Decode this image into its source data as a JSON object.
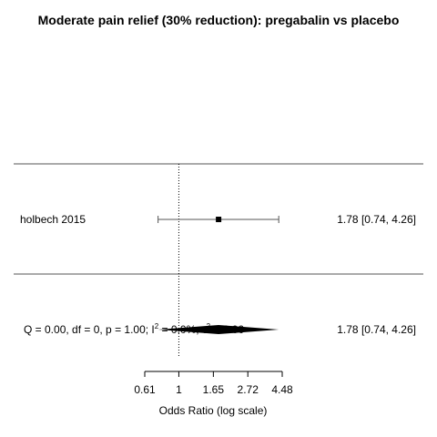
{
  "chart_data": {
    "type": "forest",
    "title": "Moderate pain relief (30% reduction): pregabalin vs placebo",
    "xlabel": "Odds Ratio (log scale)",
    "scale": "log",
    "xlim": [
      0.61,
      4.48
    ],
    "xticks": [
      0.61,
      1,
      1.65,
      2.72,
      4.48
    ],
    "xtick_labels": [
      "0.61",
      "1",
      "1.65",
      "2.72",
      "4.48"
    ],
    "reference_line": 1,
    "studies": [
      {
        "label": "holbech 2015",
        "or": 1.78,
        "ci": [
          0.74,
          4.26
        ],
        "result": "1.78 [0.74, 4.26]"
      }
    ],
    "summary": {
      "or": 1.78,
      "ci": [
        0.74,
        4.26
      ],
      "result": "1.78 [0.74, 4.26]",
      "stats_prefix": "Q = 0.00, df = 0, p = 1.00; I",
      "i2_sup": "2",
      "i2_value": " = 0.0%, τ",
      "tau_sup": "2",
      "tau_value": " = 0.00"
    }
  }
}
